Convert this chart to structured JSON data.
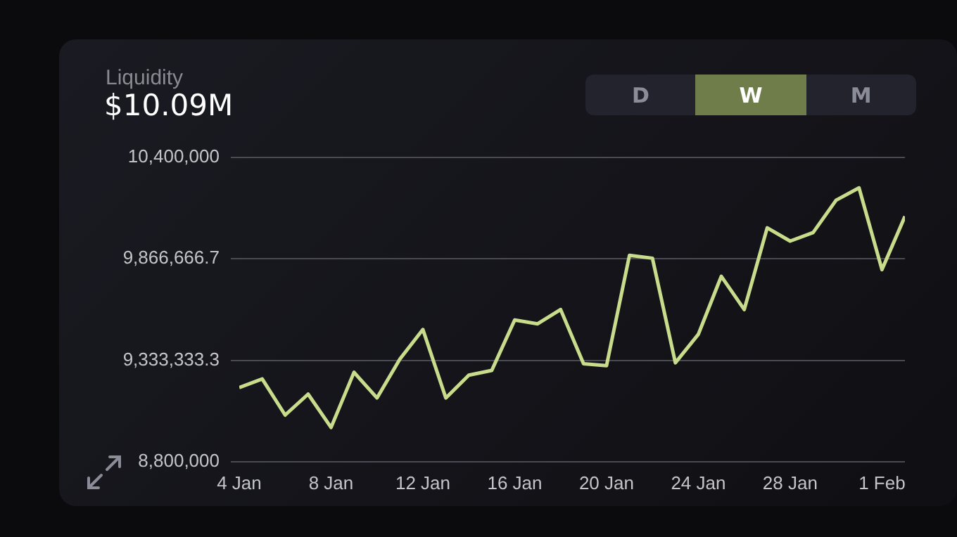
{
  "chart_data": {
    "type": "line",
    "title": "Liquidity",
    "subtitle": "$10.09M",
    "annotations": [
      "D",
      "W",
      "M"
    ],
    "x": [
      "--01-04",
      "--01-05",
      "--01-06",
      "--01-07",
      "--01-08",
      "--01-09",
      "--01-10",
      "--01-11",
      "--01-12",
      "--01-13",
      "--01-14",
      "--01-15",
      "--01-16",
      "--01-17",
      "--01-18",
      "--01-19",
      "--01-20",
      "--01-21",
      "--01-22",
      "--01-23",
      "--01-24",
      "--01-25",
      "--01-26",
      "--01-27",
      "--01-28",
      "--01-29",
      "--01-30",
      "--01-31",
      "--02-01",
      "--02-02"
    ],
    "series": [
      {
        "color": "#c8dc8c",
        "values": [
          9190000,
          9235000,
          9045000,
          9155000,
          8980000,
          9270000,
          9135000,
          9340000,
          9495000,
          9135000,
          9255000,
          9280000,
          9545000,
          9525000,
          9600000,
          9315000,
          9305000,
          9885000,
          9870000,
          9320000,
          9470000,
          9775000,
          9600000,
          10030000,
          9960000,
          10005000,
          10175000,
          10240000,
          9810000,
          10090000
        ]
      }
    ],
    "xlim": [
      "--01-04",
      "--02-02"
    ],
    "xticks": [
      {
        "value": "--01-04",
        "label": "4 Jan"
      },
      {
        "value": "--01-08",
        "label": "8 Jan"
      },
      {
        "value": "--01-12",
        "label": "12 Jan"
      },
      {
        "value": "--01-16",
        "label": "16 Jan"
      },
      {
        "value": "--01-20",
        "label": "20 Jan"
      },
      {
        "value": "--01-24",
        "label": "24 Jan"
      },
      {
        "value": "--01-28",
        "label": "28 Jan"
      },
      {
        "value": "--02-01",
        "label": "1 Feb"
      }
    ],
    "ylim": [
      8800000,
      10400000
    ],
    "yticks": [
      {
        "value": 8800000,
        "label": "8,800,000"
      },
      {
        "value": 9333333.3,
        "label": "9,333,333.3"
      },
      {
        "value": 9866666.7,
        "label": "9,866,666.7"
      },
      {
        "value": 10400000,
        "label": "10,400,000"
      }
    ],
    "grid": "y",
    "marker": "none",
    "line_style": "solid",
    "legend": false
  }
}
